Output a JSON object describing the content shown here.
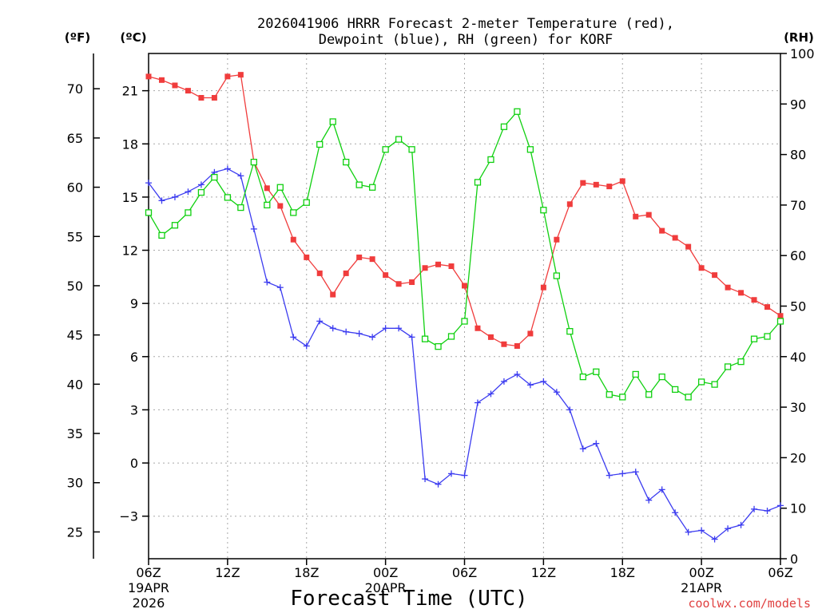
{
  "chart_data": {
    "type": "line",
    "title_line1": "2026041906 HRRR Forecast 2-meter Temperature (red),",
    "title_line2": "Dewpoint (blue), RH (green) for KORF",
    "xlabel": "Forecast Time (UTC)",
    "credit": "coolwx.com/models",
    "units": {
      "fahrenheit": "(ºF)",
      "celsius": "(ºC)",
      "rh": "(RH)"
    },
    "x_range_hours": [
      0,
      48
    ],
    "celsius_axis": {
      "range": [
        -5.4,
        23.1
      ],
      "ticks": [
        21,
        18,
        15,
        12,
        9,
        6,
        3,
        0,
        -3
      ],
      "tick_labels": [
        "21",
        "18",
        "15",
        "12",
        "9",
        "6",
        "3",
        "0",
        "−3"
      ]
    },
    "fahrenheit_axis": {
      "ticks": [
        70,
        65,
        60,
        55,
        50,
        45,
        40,
        35,
        30,
        25
      ],
      "tick_labels": [
        "70",
        "65",
        "60",
        "55",
        "50",
        "45",
        "40",
        "35",
        "30",
        "25"
      ]
    },
    "rh_axis": {
      "range": [
        0,
        100
      ],
      "ticks": [
        100,
        90,
        80,
        70,
        60,
        50,
        40,
        30,
        20,
        10,
        0
      ],
      "tick_labels": [
        "100",
        "90",
        "80",
        "70",
        "60",
        "50",
        "40",
        "30",
        "20",
        "10",
        "0"
      ]
    },
    "x_ticks": [
      {
        "hour": 0,
        "label": "06Z",
        "date1": "19APR",
        "date2": "2026"
      },
      {
        "hour": 6,
        "label": "12Z",
        "date1": "",
        "date2": ""
      },
      {
        "hour": 12,
        "label": "18Z",
        "date1": "",
        "date2": ""
      },
      {
        "hour": 18,
        "label": "00Z",
        "date1": "20APR",
        "date2": ""
      },
      {
        "hour": 24,
        "label": "06Z",
        "date1": "",
        "date2": ""
      },
      {
        "hour": 30,
        "label": "12Z",
        "date1": "",
        "date2": ""
      },
      {
        "hour": 36,
        "label": "18Z",
        "date1": "",
        "date2": ""
      },
      {
        "hour": 42,
        "label": "00Z",
        "date1": "21APR",
        "date2": ""
      },
      {
        "hour": 48,
        "label": "06Z",
        "date1": "",
        "date2": ""
      }
    ],
    "grid": true,
    "series": [
      {
        "name": "Temperature",
        "axis": "celsius",
        "color": "#f03c3c",
        "marker": "filled-square",
        "values": [
          21.8,
          21.6,
          21.3,
          21.0,
          20.6,
          20.6,
          21.8,
          21.9,
          17.0,
          15.5,
          14.5,
          12.6,
          11.6,
          10.7,
          9.5,
          10.7,
          11.6,
          11.5,
          10.6,
          10.1,
          10.2,
          11.0,
          11.2,
          11.1,
          10.0,
          7.6,
          7.1,
          6.7,
          6.6,
          7.3,
          9.9,
          12.6,
          14.6,
          15.8,
          15.7,
          15.6,
          15.9,
          13.9,
          14.0,
          13.1,
          12.7,
          12.2,
          11.0,
          10.6,
          9.9,
          9.6,
          9.2,
          8.8,
          8.3
        ]
      },
      {
        "name": "Dewpoint",
        "axis": "celsius",
        "color": "#3c3cf0",
        "marker": "plus",
        "values": [
          15.8,
          14.8,
          15.0,
          15.3,
          15.7,
          16.4,
          16.6,
          16.2,
          13.2,
          10.2,
          9.9,
          7.1,
          6.6,
          8.0,
          7.6,
          7.4,
          7.3,
          7.1,
          7.6,
          7.6,
          7.1,
          -0.9,
          -1.2,
          -0.6,
          -0.7,
          3.4,
          3.9,
          4.6,
          5.0,
          4.4,
          4.6,
          4.0,
          3.0,
          0.8,
          1.1,
          -0.7,
          -0.6,
          -0.5,
          -2.1,
          -1.5,
          -2.8,
          -3.9,
          -3.8,
          -4.3,
          -3.7,
          -3.5,
          -2.6,
          -2.7,
          -2.4
        ]
      },
      {
        "name": "RH",
        "axis": "rh",
        "color": "#10d010",
        "marker": "open-square",
        "values": [
          68.5,
          64.0,
          66.0,
          68.5,
          72.5,
          75.5,
          71.5,
          69.5,
          78.5,
          70.0,
          73.5,
          68.5,
          70.5,
          82.0,
          86.5,
          78.5,
          74.0,
          73.5,
          81.0,
          83.0,
          81.0,
          43.5,
          42.0,
          44.0,
          47.0,
          74.5,
          79.0,
          85.5,
          88.5,
          81.0,
          69.0,
          56.0,
          45.0,
          36.0,
          37.0,
          32.5,
          32.0,
          36.5,
          32.5,
          36.0,
          33.5,
          32.0,
          35.0,
          34.5,
          38.0,
          39.0,
          43.5,
          44.0,
          47.0
        ]
      }
    ]
  }
}
